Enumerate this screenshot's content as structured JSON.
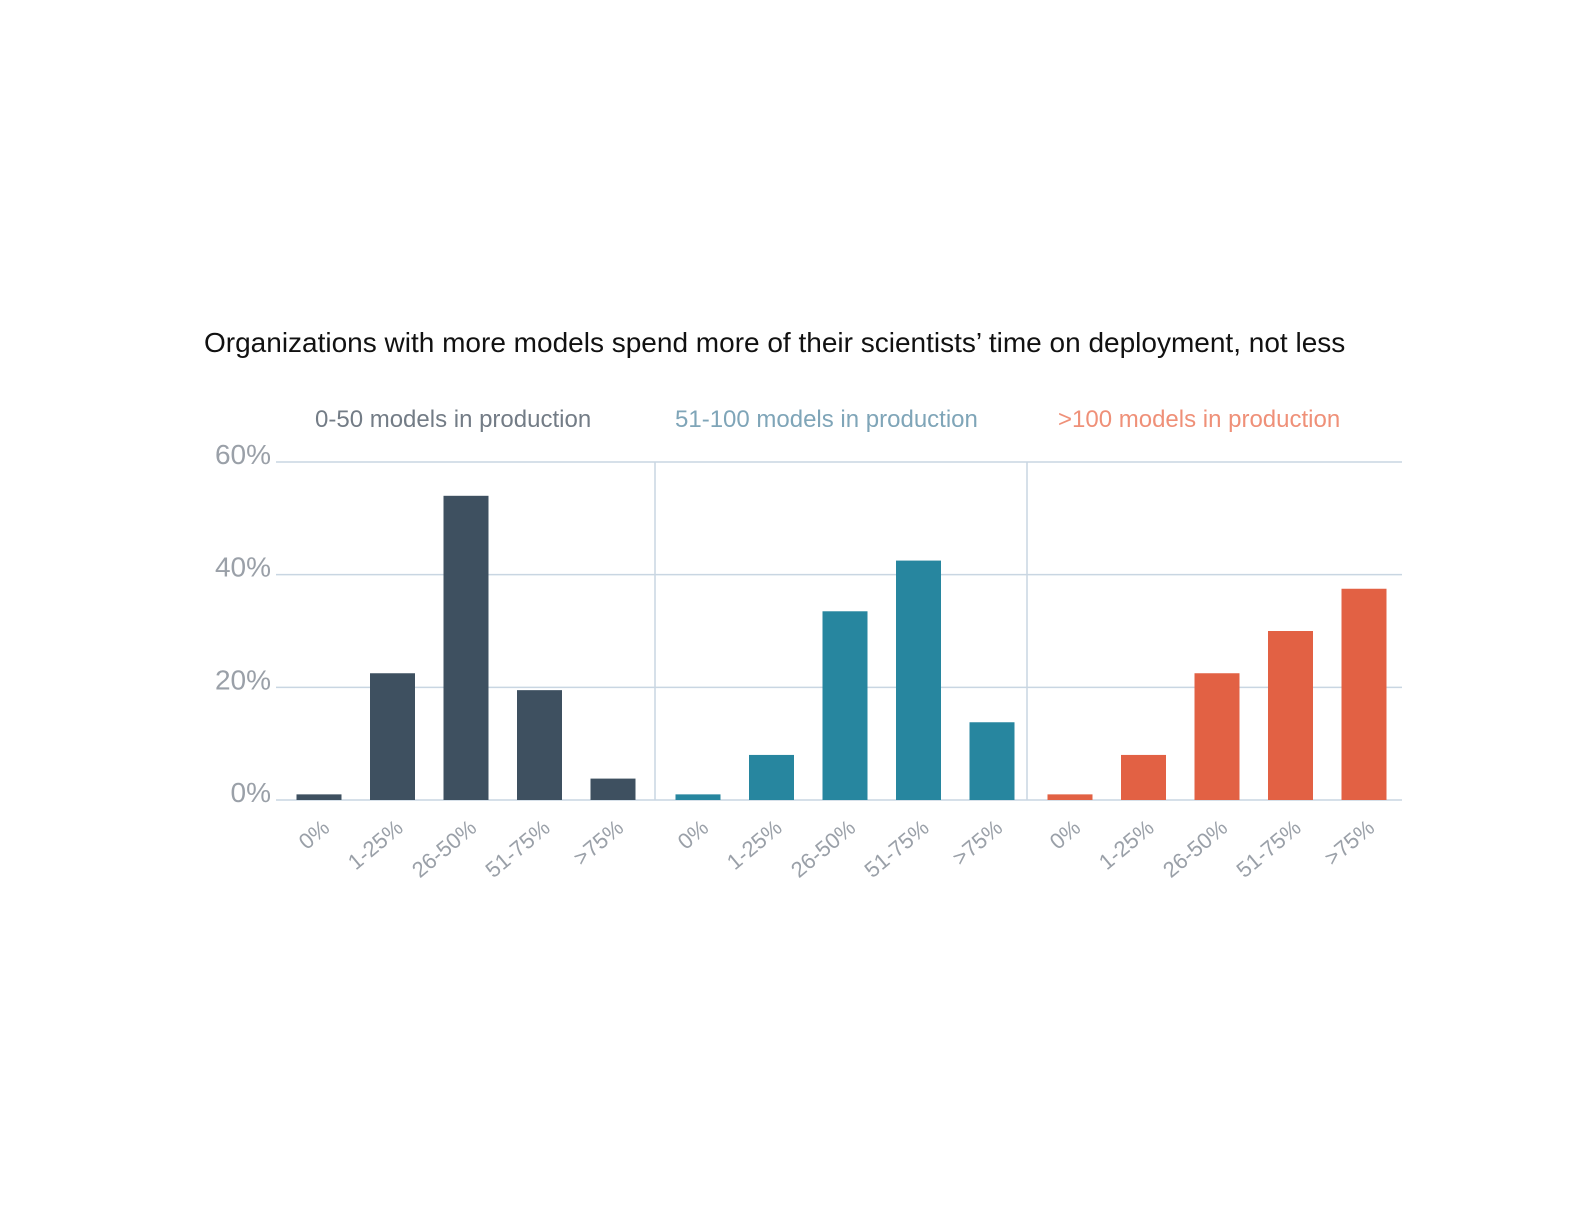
{
  "chart_data": {
    "type": "bar",
    "title": "Organizations with more models spend more of their scientists’ time on deployment, not less",
    "categories": [
      "0%",
      "1-25%",
      "26-50%",
      "51-75%",
      ">75%"
    ],
    "ylim": [
      0,
      60
    ],
    "yticks": [
      0,
      20,
      40,
      60
    ],
    "ytick_labels": [
      "0%",
      "20%",
      "40%",
      "60%"
    ],
    "grid": true,
    "legend": "top, one label above each panel",
    "series": [
      {
        "name": "0-50 models in production",
        "color": "#3e5060",
        "label_color": "#737c86",
        "values": [
          1,
          22.5,
          54,
          19.5,
          3.8
        ]
      },
      {
        "name": "51-100 models in production",
        "color": "#27869f",
        "label_color": "#7fa5b8",
        "values": [
          1,
          8,
          33.5,
          42.5,
          13.8
        ]
      },
      {
        "name": ">100 models in production",
        "color": "#e26144",
        "label_color": "#ef9078",
        "values": [
          1,
          8,
          22.5,
          30,
          37.5
        ]
      }
    ],
    "colors": {
      "grid": "#c9d6e2",
      "tick_text": "#9aa0a8"
    }
  }
}
